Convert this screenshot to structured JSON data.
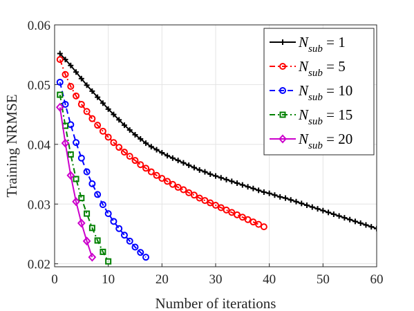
{
  "chart_data": {
    "type": "line",
    "xlabel": "Number of iterations",
    "ylabel": "Training NRMSE",
    "xlim": [
      0,
      60
    ],
    "ylim": [
      0.0195,
      0.06
    ],
    "xticks": [
      "0",
      "10",
      "20",
      "30",
      "40",
      "50",
      "60"
    ],
    "yticks": [
      "0.02",
      "0.03",
      "0.04",
      "0.05",
      "0.06"
    ],
    "legend_position": "top-right",
    "grid": true,
    "series": [
      {
        "name": "N_sub = 1",
        "legend_main": "N",
        "legend_sub": "sub",
        "legend_rest": " = 1",
        "color": "#000000",
        "marker": "plus",
        "linestyle": "solid",
        "x": [
          1,
          2,
          3,
          4,
          5,
          6,
          7,
          8,
          9,
          10,
          11,
          12,
          13,
          14,
          15,
          16,
          17,
          18,
          19,
          20,
          21,
          22,
          23,
          24,
          25,
          26,
          27,
          28,
          29,
          30,
          31,
          32,
          33,
          34,
          35,
          36,
          37,
          38,
          39,
          40,
          41,
          42,
          43,
          44,
          45,
          46,
          47,
          48,
          49,
          50,
          51,
          52,
          53,
          54,
          55,
          56,
          57,
          58,
          59,
          60
        ],
        "values": [
          0.0552,
          0.0542,
          0.0532,
          0.0521,
          0.051,
          0.0499,
          0.0489,
          0.0479,
          0.0469,
          0.0459,
          0.045,
          0.0441,
          0.0432,
          0.0424,
          0.0416,
          0.0409,
          0.0402,
          0.0396,
          0.0391,
          0.0386,
          0.0381,
          0.0377,
          0.0373,
          0.0369,
          0.0365,
          0.0361,
          0.0357,
          0.0354,
          0.035,
          0.0347,
          0.0344,
          0.0341,
          0.0338,
          0.0335,
          0.0332,
          0.0329,
          0.0326,
          0.0323,
          0.032,
          0.0318,
          0.0315,
          0.0312,
          0.031,
          0.0307,
          0.0304,
          0.0301,
          0.0298,
          0.0295,
          0.0292,
          0.0289,
          0.0286,
          0.0283,
          0.028,
          0.0277,
          0.0274,
          0.0271,
          0.0268,
          0.0265,
          0.0262,
          0.0259
        ]
      },
      {
        "name": "N_sub = 5",
        "legend_main": "N",
        "legend_sub": "sub",
        "legend_rest": " = 5",
        "color": "#ff0000",
        "marker": "circle",
        "linestyle": "dashdot",
        "x": [
          1,
          2,
          3,
          4,
          5,
          6,
          7,
          8,
          9,
          10,
          11,
          12,
          13,
          14,
          15,
          16,
          17,
          18,
          19,
          20,
          21,
          22,
          23,
          24,
          25,
          26,
          27,
          28,
          29,
          30,
          31,
          32,
          33,
          34,
          35,
          36,
          37,
          38,
          39
        ],
        "values": [
          0.0542,
          0.0517,
          0.0497,
          0.0481,
          0.0467,
          0.0455,
          0.0443,
          0.0432,
          0.0422,
          0.0412,
          0.0403,
          0.0395,
          0.0387,
          0.038,
          0.0373,
          0.0366,
          0.036,
          0.0354,
          0.0348,
          0.0343,
          0.0338,
          0.0333,
          0.0328,
          0.0324,
          0.0319,
          0.0315,
          0.031,
          0.0306,
          0.0302,
          0.0298,
          0.0294,
          0.029,
          0.0286,
          0.0282,
          0.0278,
          0.0274,
          0.027,
          0.0266,
          0.0262
        ]
      },
      {
        "name": "N_sub = 10",
        "legend_main": "N",
        "legend_sub": "sub",
        "legend_rest": " = 10",
        "color": "#0000ff",
        "marker": "circle",
        "linestyle": "dashed",
        "x": [
          1,
          2,
          3,
          4,
          5,
          6,
          7,
          8,
          9,
          10,
          11,
          12,
          13,
          14,
          15,
          16,
          17
        ],
        "values": [
          0.0504,
          0.0467,
          0.0433,
          0.0403,
          0.0377,
          0.0354,
          0.0334,
          0.0316,
          0.0299,
          0.0284,
          0.0271,
          0.0259,
          0.0248,
          0.0238,
          0.0228,
          0.0219,
          0.0211
        ]
      },
      {
        "name": "N_sub = 15",
        "legend_main": "N",
        "legend_sub": "sub",
        "legend_rest": " = 15",
        "color": "#008000",
        "marker": "square",
        "linestyle": "dashdot",
        "x": [
          1,
          2,
          3,
          4,
          5,
          6,
          7,
          8,
          9,
          10
        ],
        "values": [
          0.0483,
          0.0431,
          0.0383,
          0.0342,
          0.031,
          0.0284,
          0.026,
          0.0239,
          0.022,
          0.0204
        ]
      },
      {
        "name": "N_sub = 20",
        "legend_main": "N",
        "legend_sub": "sub",
        "legend_rest": " = 20",
        "color": "#cc00cc",
        "marker": "diamond",
        "linestyle": "solid",
        "x": [
          1,
          2,
          3,
          4,
          5,
          6,
          7
        ],
        "values": [
          0.0462,
          0.0402,
          0.0348,
          0.0304,
          0.0268,
          0.0238,
          0.0211
        ]
      }
    ]
  }
}
